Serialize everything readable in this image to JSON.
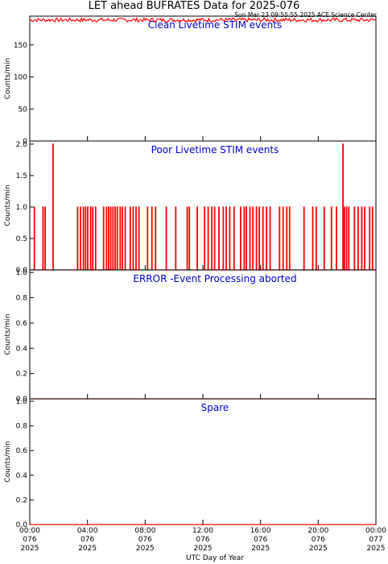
{
  "header": {
    "title": "LET ahead BUFRATES Data for 2025-076",
    "timestamp": "Sun Mar 23 09:55:55 2025 ACE Science Center"
  },
  "colors": {
    "data": "#ff0000",
    "panel_title": "#0000cc",
    "axes": "#000000"
  },
  "chart_data": [
    {
      "type": "line",
      "title": "Clean Livetime STIM events",
      "ylabel": "Counts/min",
      "ylim": [
        0,
        195
      ],
      "yticks": [
        0,
        50,
        100,
        150
      ],
      "series": [
        {
          "x_range_hours": [
            0,
            24
          ],
          "level": 189,
          "jitter": 3
        }
      ]
    },
    {
      "type": "line",
      "title": "Poor Livetime STIM events",
      "ylabel": "Counts/min",
      "ylim": [
        0,
        2.05
      ],
      "yticks": [
        "0.0",
        "0.5",
        "1.0",
        "1.5",
        "2.0"
      ],
      "series": [
        {
          "baseline": 0,
          "spikes": [
            {
              "h": 0.3,
              "v": 1
            },
            {
              "h": 0.9,
              "v": 1
            },
            {
              "h": 1.05,
              "v": 1
            },
            {
              "h": 1.6,
              "v": 2
            },
            {
              "h": 3.3,
              "v": 1
            },
            {
              "h": 3.5,
              "v": 1
            },
            {
              "h": 3.7,
              "v": 1
            },
            {
              "h": 3.85,
              "v": 1
            },
            {
              "h": 4.0,
              "v": 1
            },
            {
              "h": 4.2,
              "v": 1
            },
            {
              "h": 4.35,
              "v": 1
            },
            {
              "h": 4.55,
              "v": 1
            },
            {
              "h": 5.1,
              "v": 1
            },
            {
              "h": 5.3,
              "v": 1
            },
            {
              "h": 5.45,
              "v": 1
            },
            {
              "h": 5.6,
              "v": 1
            },
            {
              "h": 5.75,
              "v": 1
            },
            {
              "h": 5.9,
              "v": 1
            },
            {
              "h": 6.05,
              "v": 1
            },
            {
              "h": 6.25,
              "v": 1
            },
            {
              "h": 6.4,
              "v": 1
            },
            {
              "h": 6.6,
              "v": 1
            },
            {
              "h": 6.95,
              "v": 1
            },
            {
              "h": 7.15,
              "v": 1
            },
            {
              "h": 7.35,
              "v": 1
            },
            {
              "h": 7.55,
              "v": 1
            },
            {
              "h": 8.15,
              "v": 1
            },
            {
              "h": 8.45,
              "v": 1
            },
            {
              "h": 8.7,
              "v": 1
            },
            {
              "h": 9.45,
              "v": 1
            },
            {
              "h": 10.1,
              "v": 1
            },
            {
              "h": 10.9,
              "v": 1
            },
            {
              "h": 11.05,
              "v": 1
            },
            {
              "h": 11.6,
              "v": 1
            },
            {
              "h": 12.1,
              "v": 1
            },
            {
              "h": 12.35,
              "v": 1
            },
            {
              "h": 12.6,
              "v": 1
            },
            {
              "h": 12.8,
              "v": 1
            },
            {
              "h": 13.1,
              "v": 1
            },
            {
              "h": 13.4,
              "v": 1
            },
            {
              "h": 13.6,
              "v": 1
            },
            {
              "h": 13.85,
              "v": 1
            },
            {
              "h": 14.15,
              "v": 1
            },
            {
              "h": 14.6,
              "v": 1
            },
            {
              "h": 14.85,
              "v": 1
            },
            {
              "h": 15.0,
              "v": 1
            },
            {
              "h": 15.25,
              "v": 1
            },
            {
              "h": 15.45,
              "v": 1
            },
            {
              "h": 15.7,
              "v": 1
            },
            {
              "h": 15.9,
              "v": 1
            },
            {
              "h": 16.15,
              "v": 1
            },
            {
              "h": 16.4,
              "v": 1
            },
            {
              "h": 16.65,
              "v": 1
            },
            {
              "h": 17.3,
              "v": 1
            },
            {
              "h": 17.55,
              "v": 1
            },
            {
              "h": 17.8,
              "v": 1
            },
            {
              "h": 18.0,
              "v": 1
            },
            {
              "h": 19.0,
              "v": 1
            },
            {
              "h": 19.6,
              "v": 1
            },
            {
              "h": 19.85,
              "v": 1
            },
            {
              "h": 20.4,
              "v": 1
            },
            {
              "h": 20.9,
              "v": 1
            },
            {
              "h": 21.25,
              "v": 1
            },
            {
              "h": 21.7,
              "v": 2
            },
            {
              "h": 21.8,
              "v": 1
            },
            {
              "h": 21.95,
              "v": 1
            },
            {
              "h": 22.1,
              "v": 1
            },
            {
              "h": 22.5,
              "v": 1
            },
            {
              "h": 22.75,
              "v": 1
            },
            {
              "h": 23.0,
              "v": 1
            },
            {
              "h": 23.2,
              "v": 1
            },
            {
              "h": 23.55,
              "v": 1
            },
            {
              "h": 23.75,
              "v": 1
            }
          ]
        }
      ]
    },
    {
      "type": "line",
      "title": "ERROR -Event Processing aborted",
      "ylabel": "Counts/min",
      "ylim": [
        0,
        1.02
      ],
      "yticks": [
        "0.0",
        "0.2",
        "0.4",
        "0.6",
        "0.8",
        "1.0"
      ],
      "series": [
        {
          "constant": 0
        }
      ]
    },
    {
      "type": "line",
      "title": "Spare",
      "ylabel": "Counts/min",
      "ylim": [
        0,
        1.02
      ],
      "yticks": [
        "0.0",
        "0.2",
        "0.4",
        "0.6",
        "0.8",
        "1.0"
      ],
      "series": [
        {
          "constant": 0
        }
      ]
    }
  ],
  "xaxis": {
    "xlabel": "UTC Day of Year",
    "range_hours": [
      0,
      24
    ],
    "ticks": [
      {
        "h": 0,
        "time": "00:00",
        "doy": "076",
        "year": "2025"
      },
      {
        "h": 4,
        "time": "04:00",
        "doy": "076",
        "year": "2025"
      },
      {
        "h": 8,
        "time": "08:00",
        "doy": "076",
        "year": "2025"
      },
      {
        "h": 12,
        "time": "12:00",
        "doy": "076",
        "year": "2025"
      },
      {
        "h": 16,
        "time": "16:00",
        "doy": "076",
        "year": "2025"
      },
      {
        "h": 20,
        "time": "20:00",
        "doy": "076",
        "year": "2025"
      },
      {
        "h": 24,
        "time": "00:00",
        "doy": "077",
        "year": "2025"
      }
    ]
  }
}
